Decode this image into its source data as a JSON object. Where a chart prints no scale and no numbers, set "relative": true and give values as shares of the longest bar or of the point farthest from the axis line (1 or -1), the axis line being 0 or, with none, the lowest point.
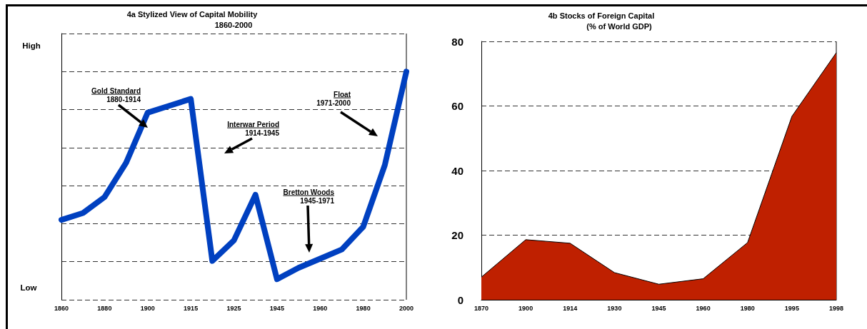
{
  "chart_data": [
    {
      "type": "line",
      "title": "4a Stylized View of Capital Mobility",
      "subtitle": "1860-2000",
      "categories": [
        "1860",
        null,
        "1880",
        null,
        "1900",
        null,
        "1915",
        null,
        "1925",
        null,
        "1945",
        null,
        "1960",
        null,
        "1980",
        null,
        "2000"
      ],
      "relative": true,
      "values": [
        0.35,
        0.38,
        0.45,
        0.6,
        0.82,
        0.85,
        0.88,
        0.17,
        0.26,
        0.46,
        0.09,
        0.14,
        0.18,
        0.22,
        0.32,
        0.59,
        1
      ],
      "color": "#0040c0",
      "grid": "y",
      "annotations": [
        "High",
        "Low",
        "Gold Standard\n1880-1914",
        "Interwar Period\n1914-1945",
        "Bretton Woods\n1945-1971",
        "Float\n1971-2000"
      ]
    },
    {
      "type": "area",
      "title": "4b Stocks of Foreign Capital",
      "subtitle": "(% of World GDP)",
      "categories": [
        "1870",
        "1900",
        "1914",
        "1930",
        "1945",
        "1960",
        "1980",
        "1995",
        "1998"
      ],
      "values": [
        7.0,
        18.6,
        17.5,
        8.4,
        4.8,
        6.5,
        17.7,
        56.8,
        76.5
      ],
      "color": "#bf2000",
      "ylim": [
        0,
        80
      ],
      "yticks": [
        0,
        20,
        40,
        60,
        80
      ],
      "grid": "y"
    }
  ]
}
